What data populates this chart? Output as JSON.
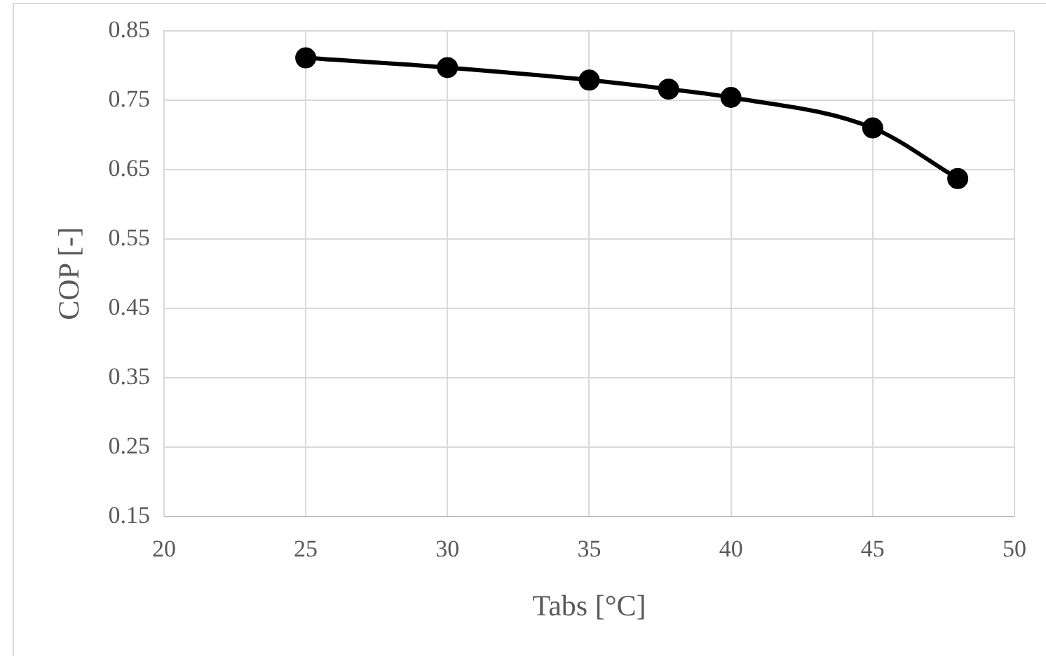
{
  "chart_data": {
    "type": "line",
    "xlabel": "Tabs [°C]",
    "ylabel": "COP [-]",
    "x": [
      25,
      30,
      35,
      37.8,
      40,
      45,
      48
    ],
    "series": [
      {
        "color": "#000000",
        "values": [
          0.811,
          0.797,
          0.779,
          0.766,
          0.754,
          0.71,
          0.637
        ]
      }
    ],
    "xlim": [
      20,
      50
    ],
    "xticks": [
      20,
      25,
      30,
      35,
      40,
      45,
      50
    ],
    "ylim": [
      0.15,
      0.85
    ],
    "yticks": [
      0.15,
      0.25,
      0.35,
      0.45,
      0.55,
      0.65,
      0.75,
      0.85
    ],
    "grid": true,
    "legend": false,
    "marker": "circle",
    "line_style": "solid"
  }
}
